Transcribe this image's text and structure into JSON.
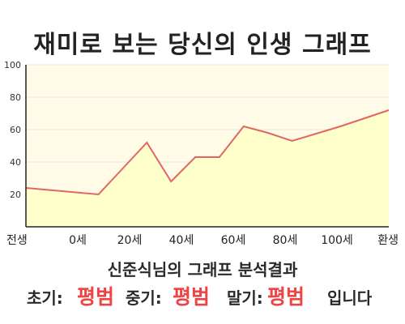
{
  "title": "재미로 보는 당신의 인생 그래프",
  "subtitle": "신준식님의 그래프 분석결과",
  "results": {
    "early_label": "초기:",
    "early_value": "평범",
    "middle_label": "중기:",
    "middle_value": "평범",
    "late_label": "말기:",
    "late_value": "평범",
    "ending": "입니다"
  },
  "colors": {
    "line": "#e06666",
    "fill": "#ffffcc",
    "plot_bg": "#fffbe6",
    "grid": "#e6e6e6",
    "axis": "#222222",
    "highlight": "#ee4444"
  },
  "chart_data": {
    "type": "area",
    "title": "재미로 보는 당신의 인생 그래프",
    "xlabel": "",
    "ylabel": "",
    "x_labels": [
      "전생",
      "0세",
      "20세",
      "40세",
      "60세",
      "80세",
      "100세",
      "환생"
    ],
    "y_ticks": [
      20,
      40,
      60,
      80,
      100
    ],
    "ylim": [
      0,
      100
    ],
    "xlim": [
      -30,
      120
    ],
    "points": [
      {
        "x": -30,
        "y": 24
      },
      {
        "x": 0,
        "y": 20
      },
      {
        "x": 10,
        "y": 36
      },
      {
        "x": 20,
        "y": 52
      },
      {
        "x": 30,
        "y": 28
      },
      {
        "x": 40,
        "y": 43
      },
      {
        "x": 50,
        "y": 43
      },
      {
        "x": 60,
        "y": 62
      },
      {
        "x": 70,
        "y": 58
      },
      {
        "x": 80,
        "y": 53
      },
      {
        "x": 100,
        "y": 62
      },
      {
        "x": 120,
        "y": 72
      }
    ],
    "grid": true,
    "legend": "none"
  }
}
